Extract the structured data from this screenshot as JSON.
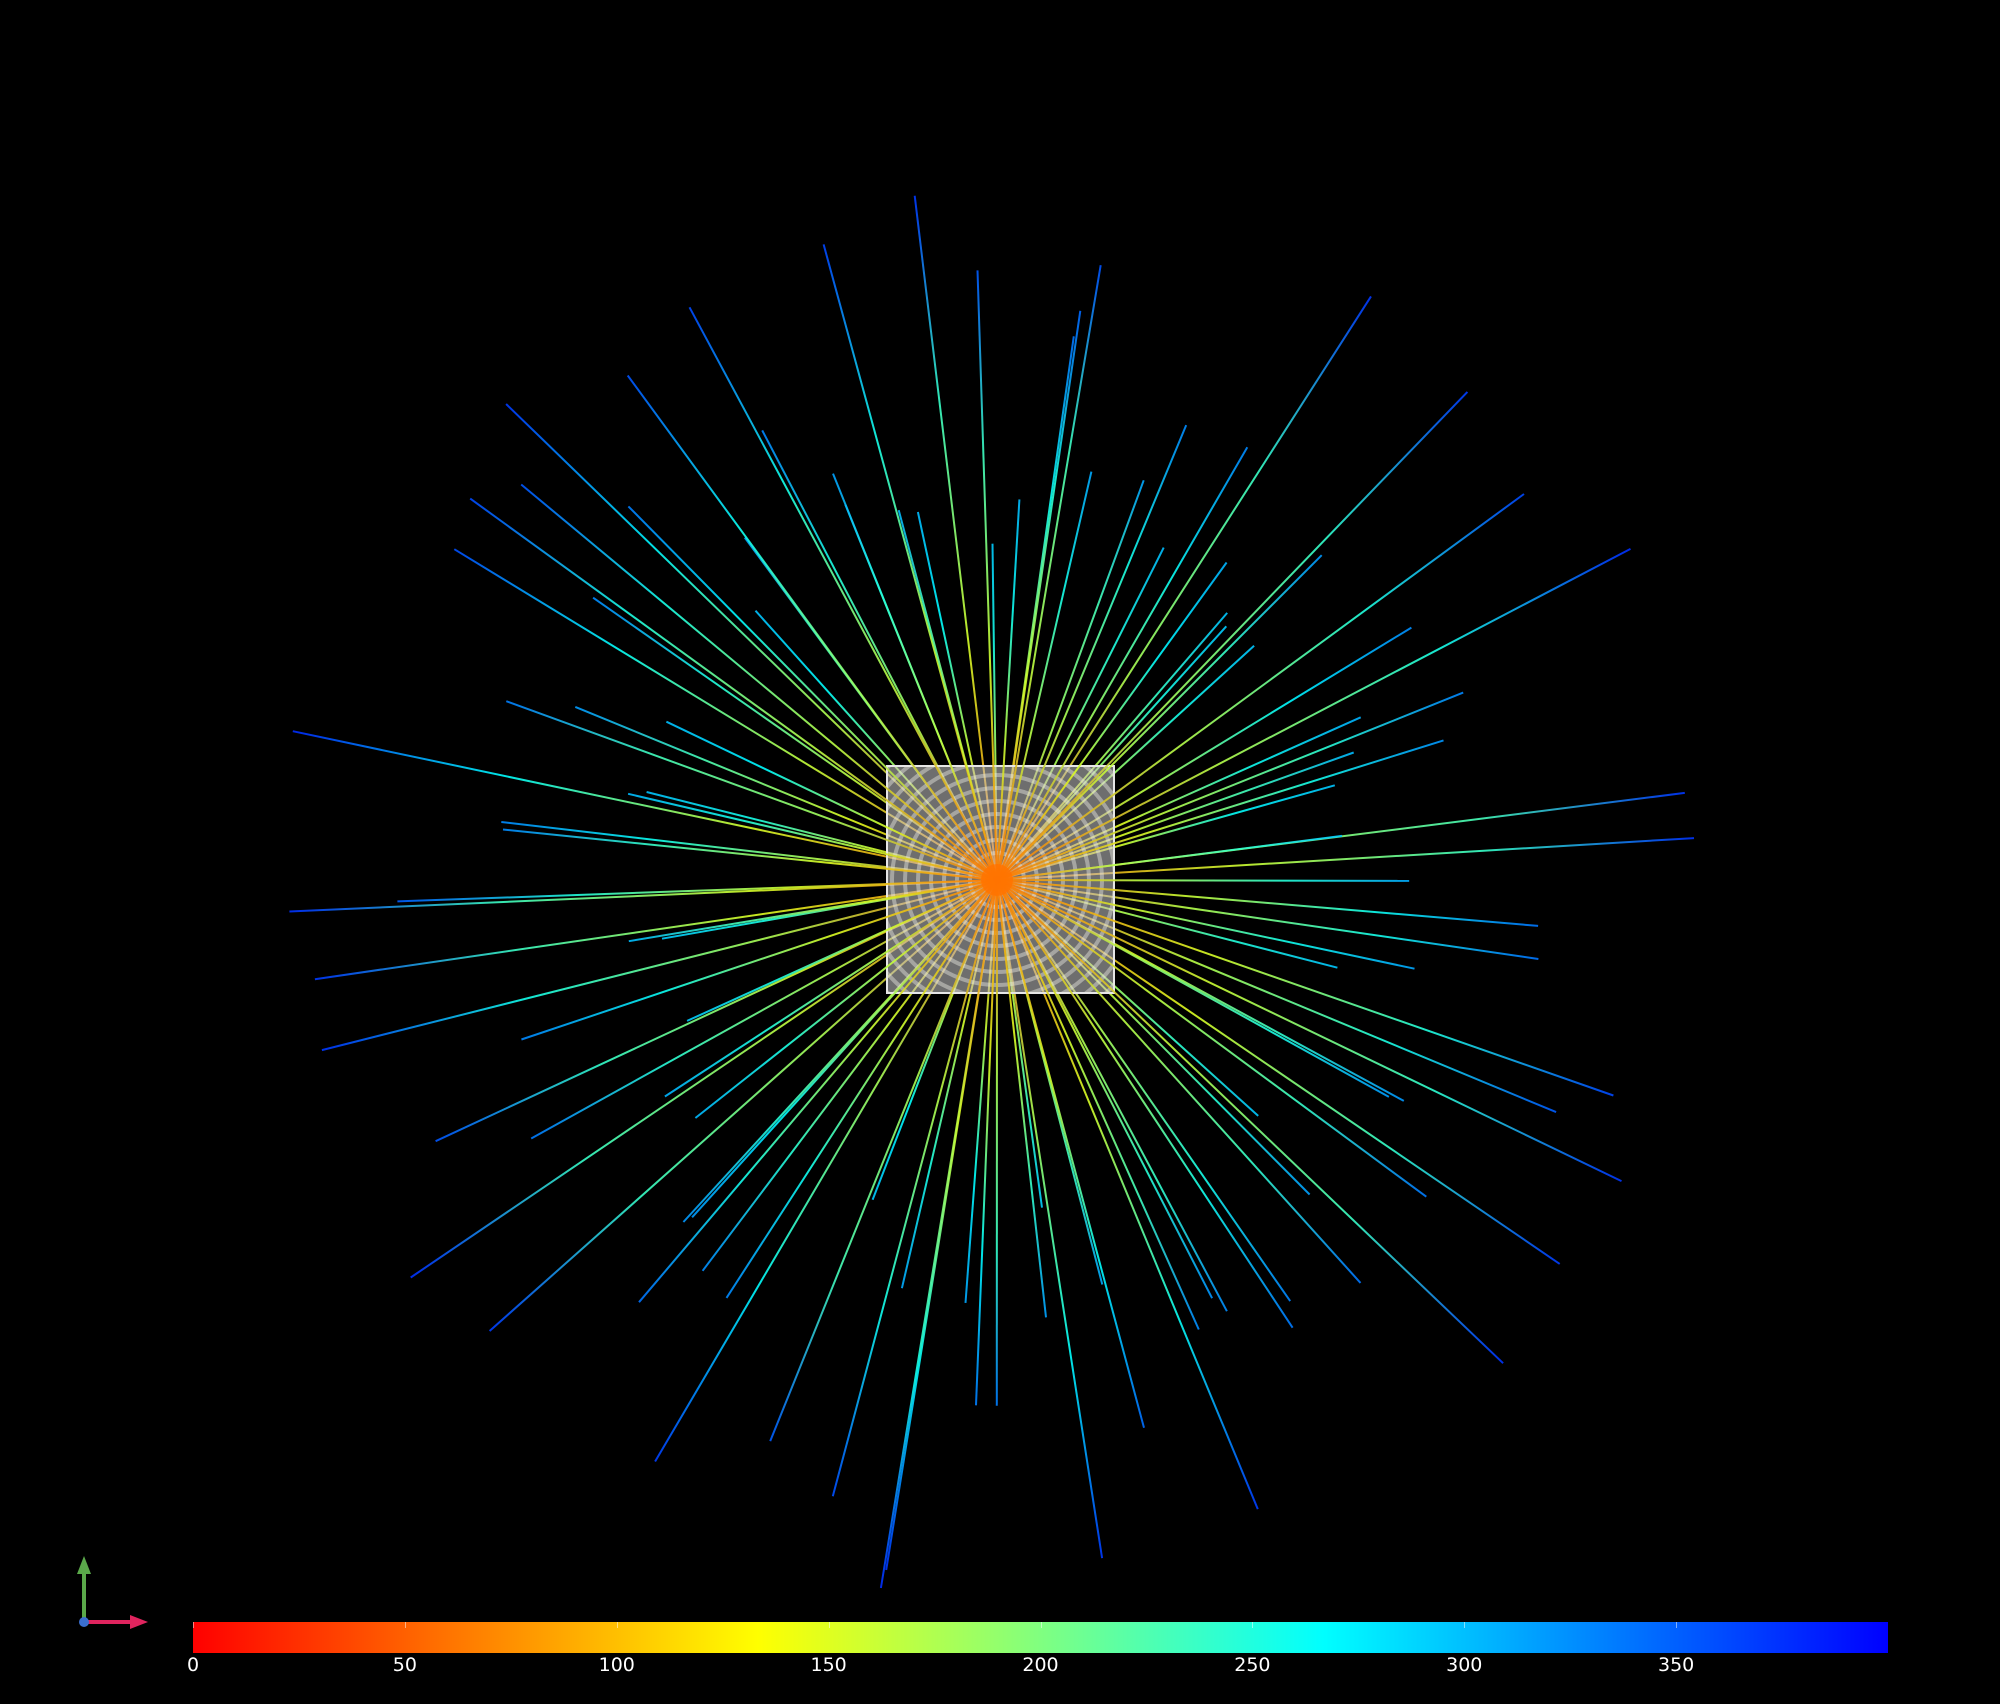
{
  "colorbar": {
    "min": 0,
    "max": 400,
    "ticks": [
      "0",
      "50",
      "100",
      "150",
      "200",
      "250",
      "300",
      "350"
    ],
    "tick_values": [
      0,
      50,
      100,
      150,
      200,
      250,
      300,
      350
    ],
    "stops": [
      "#ff0000",
      "#ff8000",
      "#ffff00",
      "#80ff80",
      "#00ffff",
      "#0080ff",
      "#0000ff"
    ]
  },
  "colors": {
    "background": "#000000",
    "axis_x": "#e0245e",
    "axis_y": "#5aa84a",
    "axis_z": "#3a6fd0",
    "box_fill": "#c8c8c8",
    "box_edge": "#e6e6e6"
  },
  "scene": {
    "type": "radial-streamlines",
    "streamline_count": 110,
    "color_scale": "jet-reversed",
    "center_value": 60
  },
  "icons": [
    "axis-triad-icon"
  ]
}
